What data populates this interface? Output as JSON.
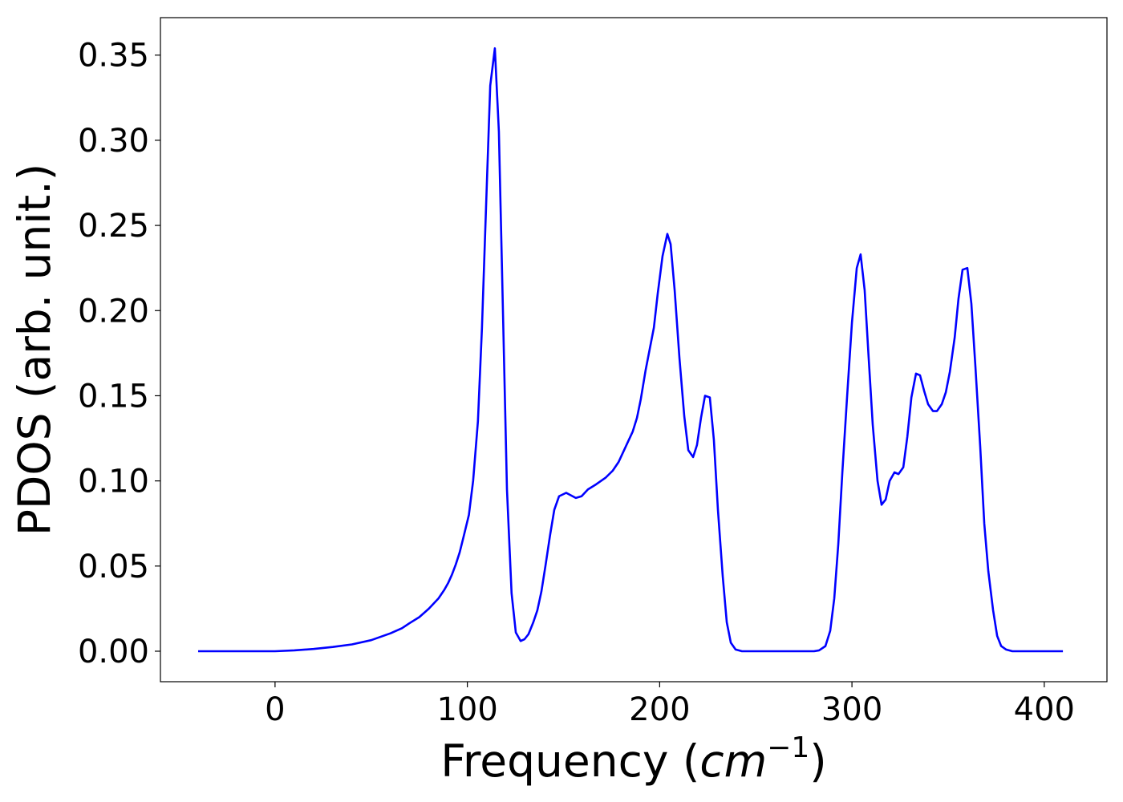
{
  "chart_data": {
    "type": "line",
    "xlabel_parts": [
      "Frequency (",
      "cm",
      "−1",
      ")"
    ],
    "ylabel": "PDOS (arb. unit.)",
    "xlim": [
      -59.6,
      432.6
    ],
    "ylim": [
      -0.0179,
      0.372
    ],
    "xticks": [
      0,
      100,
      200,
      300,
      400
    ],
    "yticks": [
      {
        "value": 0,
        "label": "0.00"
      },
      {
        "value": 0.05,
        "label": "0.05"
      },
      {
        "value": 0.1,
        "label": "0.10"
      },
      {
        "value": 0.15,
        "label": "0.15"
      },
      {
        "value": 0.2,
        "label": "0.20"
      },
      {
        "value": 0.25,
        "label": "0.25"
      },
      {
        "value": 0.3,
        "label": "0.30"
      },
      {
        "value": 0.35,
        "label": "0.35"
      }
    ],
    "grid": false,
    "series": [
      {
        "color": "#0000ff",
        "x": [
          -40,
          0,
          10,
          20,
          30,
          40,
          50,
          60,
          66,
          70,
          75,
          80,
          85,
          88,
          90,
          92,
          94,
          96,
          98,
          100.8,
          103,
          105.5,
          107.6,
          109.7,
          111.9,
          114.3,
          116.4,
          118.5,
          120.6,
          123,
          125.2,
          127.7,
          129.7,
          131.8,
          134.3,
          136.4,
          138.5,
          140.6,
          143,
          145.2,
          147.7,
          151.4,
          156.4,
          159.4,
          162.7,
          167,
          172,
          175.6,
          178.6,
          182.3,
          186,
          188.2,
          190.2,
          192.7,
          197,
          199,
          201.5,
          204,
          205.7,
          207.8,
          210.3,
          212.8,
          214.9,
          217.4,
          219.4,
          221.5,
          223.6,
          226.1,
          228.2,
          230.3,
          232.8,
          234.9,
          237,
          239.5,
          242.8,
          280.3,
          282.9,
          286.2,
          288.7,
          290.8,
          292.9,
          295,
          297.5,
          300,
          302.5,
          304.5,
          306.6,
          308.7,
          310.8,
          313.3,
          315.4,
          317.5,
          319.6,
          322.1,
          324.2,
          326.7,
          328.8,
          330.9,
          333.3,
          335.4,
          337.5,
          339.6,
          342.1,
          344.2,
          346.7,
          348.8,
          350.9,
          353.4,
          355.4,
          357.5,
          360,
          362.1,
          364.2,
          366.7,
          368.8,
          370.9,
          373.4,
          375.5,
          377.6,
          380.1,
          383.4,
          409.7
        ],
        "values": [
          0,
          0,
          0.0005,
          0.0013,
          0.0025,
          0.004,
          0.0065,
          0.0105,
          0.0135,
          0.0165,
          0.02,
          0.025,
          0.031,
          0.036,
          0.04,
          0.045,
          0.051,
          0.058,
          0.067,
          0.08,
          0.1,
          0.135,
          0.19,
          0.26,
          0.332,
          0.354,
          0.305,
          0.2,
          0.095,
          0.034,
          0.011,
          0.006,
          0.007,
          0.01,
          0.017,
          0.024,
          0.035,
          0.05,
          0.068,
          0.083,
          0.091,
          0.093,
          0.09,
          0.091,
          0.095,
          0.098,
          0.102,
          0.106,
          0.111,
          0.12,
          0.129,
          0.137,
          0.148,
          0.165,
          0.19,
          0.21,
          0.232,
          0.245,
          0.239,
          0.212,
          0.172,
          0.138,
          0.118,
          0.114,
          0.121,
          0.137,
          0.15,
          0.149,
          0.124,
          0.083,
          0.044,
          0.017,
          0.005,
          0.001,
          0,
          0,
          0.0005,
          0.003,
          0.012,
          0.031,
          0.063,
          0.105,
          0.15,
          0.193,
          0.225,
          0.233,
          0.212,
          0.172,
          0.133,
          0.1,
          0.086,
          0.089,
          0.1,
          0.105,
          0.104,
          0.108,
          0.126,
          0.149,
          0.163,
          0.162,
          0.153,
          0.145,
          0.141,
          0.141,
          0.145,
          0.152,
          0.164,
          0.184,
          0.207,
          0.224,
          0.225,
          0.204,
          0.167,
          0.12,
          0.075,
          0.047,
          0.024,
          0.009,
          0.003,
          0.001,
          0,
          0
        ]
      }
    ]
  }
}
